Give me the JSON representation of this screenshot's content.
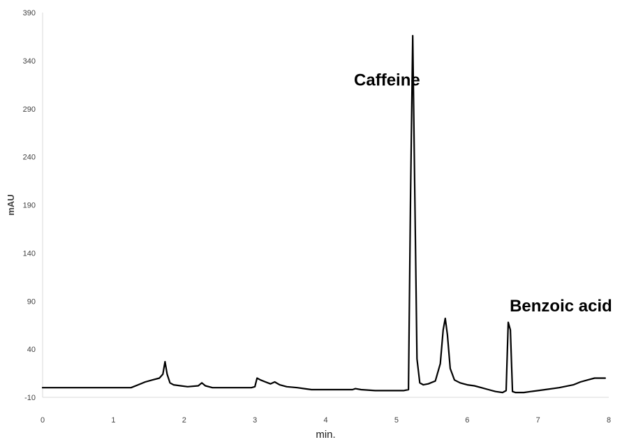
{
  "chart_data": {
    "type": "line",
    "title": "",
    "xlabel": "min.",
    "ylabel": "mAU",
    "xlim": [
      0,
      8
    ],
    "ylim": [
      -10,
      390
    ],
    "x_ticks": [
      0,
      1,
      2,
      3,
      4,
      5,
      6,
      7,
      8
    ],
    "y_ticks": [
      -10,
      40,
      90,
      140,
      190,
      240,
      290,
      340,
      390
    ],
    "grid": false,
    "legend": "none",
    "line_color": "#000000",
    "series": [
      {
        "x": [
          0,
          0.5,
          1.0,
          1.25,
          1.35,
          1.45,
          1.55,
          1.65,
          1.7,
          1.73,
          1.76,
          1.8,
          1.85,
          1.95,
          2.05,
          2.2,
          2.25,
          2.3,
          2.4,
          2.6,
          2.8,
          2.95,
          3.0,
          3.03,
          3.08,
          3.15,
          3.22,
          3.28,
          3.35,
          3.45,
          3.6,
          3.7,
          3.8,
          4.0,
          4.2,
          4.38,
          4.42,
          4.5,
          4.7,
          4.9,
          5.1,
          5.17,
          5.2,
          5.23,
          5.26,
          5.29,
          5.33,
          5.38,
          5.45,
          5.55,
          5.62,
          5.66,
          5.69,
          5.72,
          5.76,
          5.82,
          5.9,
          6.0,
          6.1,
          6.2,
          6.3,
          6.4,
          6.5,
          6.55,
          6.58,
          6.61,
          6.64,
          6.68,
          6.8,
          6.9,
          7.0,
          7.1,
          7.3,
          7.5,
          7.6,
          7.7,
          7.8,
          7.95
        ],
        "y": [
          0,
          0,
          0,
          0,
          3,
          6,
          8,
          10,
          14,
          27,
          14,
          5,
          3,
          2,
          1,
          2,
          5,
          2,
          0,
          0,
          0,
          0,
          1,
          10,
          8,
          6,
          4,
          6,
          3,
          1,
          0,
          -1,
          -2,
          -2,
          -2,
          -2,
          -1,
          -2,
          -3,
          -3,
          -3,
          -2,
          200,
          366,
          200,
          30,
          5,
          3,
          4,
          7,
          25,
          60,
          72,
          55,
          20,
          8,
          5,
          3,
          2,
          0,
          -2,
          -4,
          -5,
          -3,
          68,
          60,
          -4,
          -5,
          -5,
          -4,
          -3,
          -2,
          0,
          3,
          6,
          8,
          10,
          10
        ]
      }
    ],
    "annotations": [
      {
        "text": "Caffeine",
        "x": 4.4,
        "y": 320
      },
      {
        "text": "Benzoic acid",
        "x": 6.6,
        "y": 85
      }
    ]
  }
}
